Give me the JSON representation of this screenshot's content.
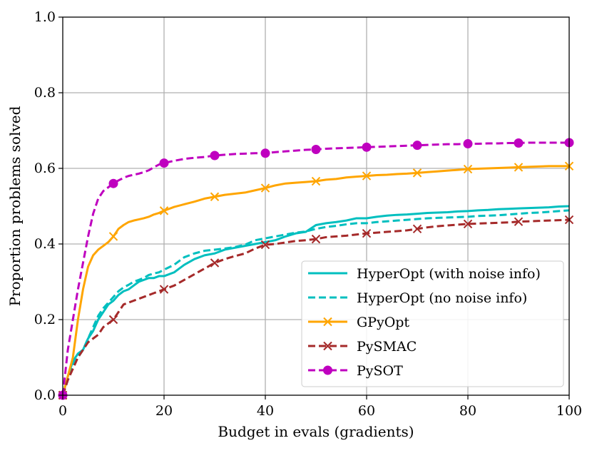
{
  "chart_data": {
    "type": "line",
    "title": "",
    "xlabel": "Budget in evals (gradients)",
    "ylabel": "Proportion problems solved",
    "xlim": [
      0,
      100
    ],
    "ylim": [
      0,
      1
    ],
    "xticks": [
      0,
      20,
      40,
      60,
      80,
      100
    ],
    "yticks": [
      0.0,
      0.2,
      0.4,
      0.6,
      0.8,
      1.0
    ],
    "xtick_labels": [
      "0",
      "20",
      "40",
      "60",
      "80",
      "100"
    ],
    "ytick_labels": [
      "0.0",
      "0.2",
      "0.4",
      "0.6",
      "0.8",
      "1.0"
    ],
    "grid": true,
    "legend_position": "lower-right",
    "series": [
      {
        "name": "HyperOpt (with noise info)",
        "color": "#00bfbf",
        "dash": "solid",
        "marker": "none",
        "x": [
          0,
          1,
          2,
          3,
          4,
          5,
          6,
          7,
          8,
          9,
          10,
          11,
          12,
          13,
          14,
          15,
          16,
          17,
          18,
          19,
          20,
          22,
          24,
          26,
          28,
          30,
          32,
          34,
          36,
          38,
          40,
          42,
          44,
          46,
          48,
          50,
          52,
          54,
          56,
          58,
          60,
          62,
          64,
          66,
          68,
          70,
          72,
          74,
          76,
          78,
          80,
          82,
          84,
          86,
          88,
          90,
          92,
          94,
          96,
          98,
          100
        ],
        "y": [
          0.0,
          0.05,
          0.09,
          0.11,
          0.12,
          0.15,
          0.17,
          0.2,
          0.22,
          0.24,
          0.25,
          0.265,
          0.275,
          0.28,
          0.29,
          0.3,
          0.305,
          0.31,
          0.31,
          0.315,
          0.315,
          0.325,
          0.345,
          0.36,
          0.37,
          0.375,
          0.385,
          0.39,
          0.395,
          0.4,
          0.405,
          0.41,
          0.42,
          0.428,
          0.432,
          0.45,
          0.455,
          0.458,
          0.462,
          0.468,
          0.468,
          0.472,
          0.475,
          0.477,
          0.478,
          0.48,
          0.482,
          0.483,
          0.484,
          0.486,
          0.487,
          0.489,
          0.49,
          0.492,
          0.493,
          0.494,
          0.495,
          0.496,
          0.497,
          0.499,
          0.5
        ]
      },
      {
        "name": "HyperOpt (no noise info)",
        "color": "#00bfbf",
        "dash": "dashed",
        "marker": "none",
        "x": [
          0,
          1,
          2,
          3,
          4,
          5,
          6,
          7,
          8,
          9,
          10,
          11,
          12,
          13,
          14,
          15,
          16,
          17,
          18,
          19,
          20,
          22,
          24,
          26,
          28,
          30,
          32,
          34,
          36,
          38,
          40,
          42,
          44,
          46,
          48,
          50,
          52,
          54,
          56,
          58,
          60,
          62,
          64,
          66,
          68,
          70,
          72,
          74,
          76,
          78,
          80,
          82,
          84,
          86,
          88,
          90,
          92,
          94,
          96,
          98,
          100
        ],
        "y": [
          0.0,
          0.04,
          0.08,
          0.1,
          0.12,
          0.15,
          0.18,
          0.21,
          0.23,
          0.245,
          0.26,
          0.275,
          0.285,
          0.292,
          0.3,
          0.305,
          0.31,
          0.318,
          0.322,
          0.325,
          0.332,
          0.345,
          0.365,
          0.375,
          0.382,
          0.385,
          0.388,
          0.392,
          0.398,
          0.41,
          0.415,
          0.42,
          0.425,
          0.43,
          0.433,
          0.44,
          0.445,
          0.448,
          0.452,
          0.455,
          0.455,
          0.458,
          0.46,
          0.462,
          0.464,
          0.466,
          0.468,
          0.469,
          0.47,
          0.471,
          0.472,
          0.474,
          0.475,
          0.476,
          0.478,
          0.48,
          0.482,
          0.483,
          0.485,
          0.487,
          0.489
        ]
      },
      {
        "name": "GPyOpt",
        "color": "#ffa500",
        "dash": "solid",
        "marker": "x",
        "markers_x": [
          0,
          10,
          20,
          30,
          40,
          50,
          60,
          70,
          80,
          90,
          100
        ],
        "x": [
          0,
          1,
          2,
          3,
          4,
          5,
          6,
          7,
          8,
          9,
          10,
          11,
          12,
          13,
          14,
          15,
          16,
          17,
          18,
          19,
          20,
          22,
          24,
          26,
          28,
          30,
          32,
          34,
          36,
          38,
          40,
          42,
          44,
          46,
          48,
          50,
          52,
          54,
          56,
          58,
          60,
          62,
          64,
          66,
          68,
          70,
          72,
          74,
          76,
          78,
          80,
          82,
          84,
          86,
          88,
          90,
          92,
          94,
          96,
          98,
          100
        ],
        "y": [
          0.0,
          0.05,
          0.1,
          0.2,
          0.28,
          0.34,
          0.37,
          0.385,
          0.395,
          0.405,
          0.42,
          0.44,
          0.45,
          0.458,
          0.462,
          0.465,
          0.468,
          0.472,
          0.478,
          0.482,
          0.488,
          0.498,
          0.505,
          0.512,
          0.52,
          0.525,
          0.53,
          0.533,
          0.536,
          0.542,
          0.548,
          0.555,
          0.56,
          0.562,
          0.564,
          0.566,
          0.57,
          0.572,
          0.576,
          0.578,
          0.58,
          0.582,
          0.583,
          0.585,
          0.586,
          0.588,
          0.59,
          0.592,
          0.594,
          0.596,
          0.598,
          0.599,
          0.6,
          0.601,
          0.602,
          0.603,
          0.604,
          0.605,
          0.606,
          0.606,
          0.606
        ]
      },
      {
        "name": "PySMAC",
        "color": "#a52a2a",
        "dash": "dashed",
        "marker": "x",
        "markers_x": [
          0,
          10,
          20,
          30,
          40,
          50,
          60,
          70,
          80,
          90,
          100
        ],
        "x": [
          0,
          1,
          2,
          3,
          4,
          5,
          6,
          7,
          8,
          9,
          10,
          11,
          12,
          13,
          14,
          15,
          16,
          17,
          18,
          19,
          20,
          22,
          24,
          26,
          28,
          30,
          32,
          34,
          36,
          38,
          40,
          42,
          44,
          46,
          48,
          50,
          52,
          54,
          56,
          58,
          60,
          62,
          64,
          66,
          68,
          70,
          72,
          74,
          76,
          78,
          80,
          82,
          84,
          86,
          88,
          90,
          92,
          94,
          96,
          98,
          100
        ],
        "y": [
          0.0,
          0.04,
          0.07,
          0.1,
          0.12,
          0.14,
          0.15,
          0.16,
          0.18,
          0.19,
          0.2,
          0.22,
          0.24,
          0.245,
          0.25,
          0.255,
          0.26,
          0.265,
          0.27,
          0.275,
          0.28,
          0.29,
          0.305,
          0.32,
          0.335,
          0.35,
          0.36,
          0.368,
          0.375,
          0.388,
          0.398,
          0.4,
          0.404,
          0.408,
          0.41,
          0.413,
          0.418,
          0.42,
          0.422,
          0.425,
          0.428,
          0.43,
          0.432,
          0.434,
          0.436,
          0.44,
          0.444,
          0.447,
          0.449,
          0.451,
          0.453,
          0.454,
          0.455,
          0.456,
          0.457,
          0.459,
          0.46,
          0.461,
          0.462,
          0.463,
          0.464
        ]
      },
      {
        "name": "PySOT",
        "color": "#bf00bf",
        "dash": "dashed",
        "marker": "circle",
        "markers_x": [
          0,
          10,
          20,
          30,
          40,
          50,
          60,
          70,
          80,
          90,
          100
        ],
        "x": [
          0,
          1,
          2,
          3,
          4,
          5,
          6,
          7,
          8,
          9,
          10,
          11,
          12,
          13,
          14,
          15,
          16,
          17,
          18,
          19,
          20,
          22,
          24,
          26,
          28,
          30,
          32,
          34,
          36,
          38,
          40,
          42,
          44,
          46,
          48,
          50,
          52,
          54,
          56,
          58,
          60,
          62,
          64,
          66,
          68,
          70,
          72,
          74,
          76,
          78,
          80,
          82,
          84,
          86,
          88,
          90,
          92,
          94,
          96,
          98,
          100
        ],
        "y": [
          0.0,
          0.12,
          0.2,
          0.28,
          0.35,
          0.42,
          0.48,
          0.52,
          0.54,
          0.55,
          0.56,
          0.568,
          0.575,
          0.58,
          0.583,
          0.586,
          0.59,
          0.595,
          0.603,
          0.61,
          0.614,
          0.62,
          0.625,
          0.628,
          0.63,
          0.634,
          0.636,
          0.638,
          0.639,
          0.64,
          0.64,
          0.643,
          0.645,
          0.647,
          0.649,
          0.65,
          0.652,
          0.653,
          0.654,
          0.655,
          0.656,
          0.657,
          0.658,
          0.659,
          0.66,
          0.661,
          0.662,
          0.663,
          0.664,
          0.664,
          0.665,
          0.665,
          0.666,
          0.666,
          0.667,
          0.667,
          0.668,
          0.668,
          0.668,
          0.668,
          0.668
        ]
      }
    ]
  }
}
